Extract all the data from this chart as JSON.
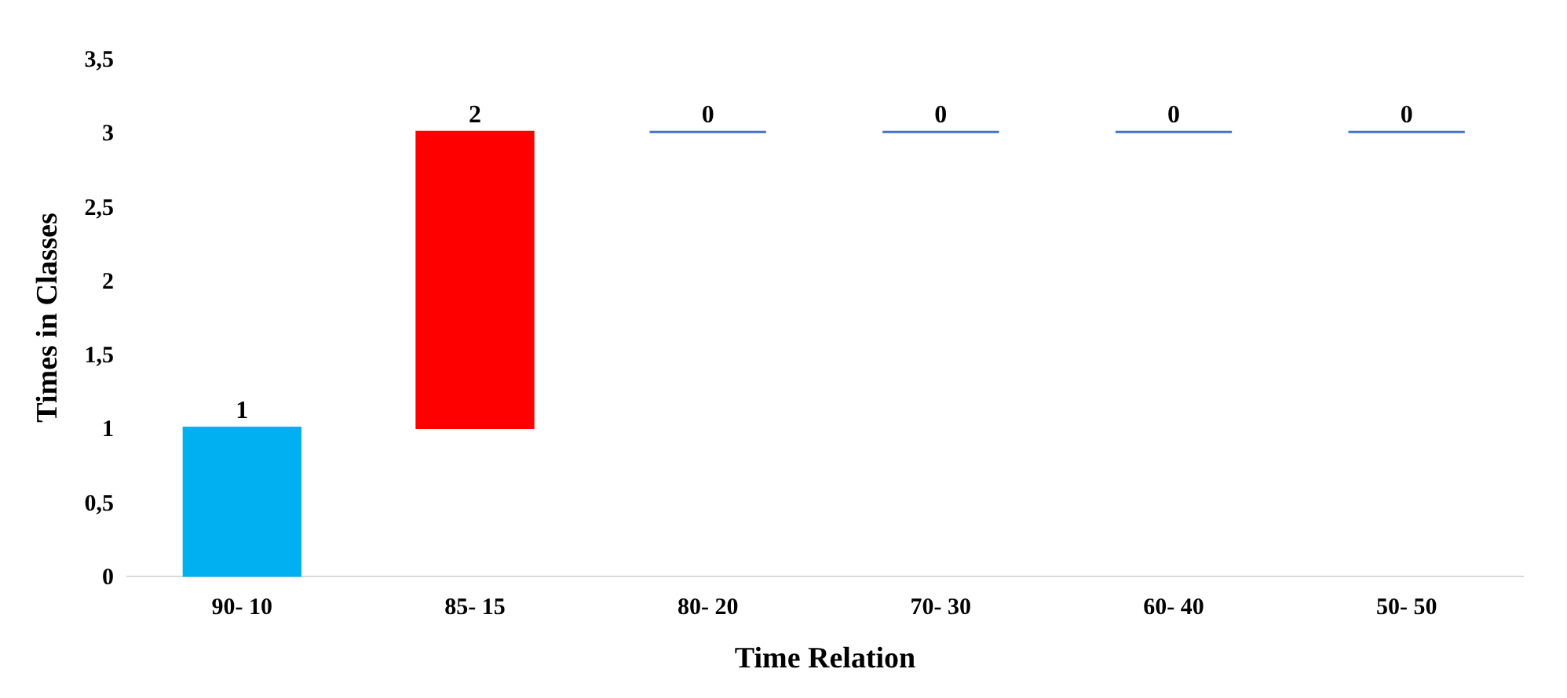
{
  "chart_data": {
    "type": "bar",
    "xlabel": "Time Relation",
    "ylabel": "Times in Classes",
    "categories": [
      "90- 10",
      "85- 15",
      "80- 20",
      "70- 30",
      "60- 40",
      "50- 50"
    ],
    "values": [
      1,
      2,
      0,
      0,
      0,
      0
    ],
    "base": [
      0,
      1,
      3,
      3,
      3,
      3
    ],
    "colors": [
      "#00b0f0",
      "#ff0000",
      "#4472c4",
      "#4472c4",
      "#4472c4",
      "#4472c4"
    ],
    "ylim": [
      0,
      3.5
    ],
    "yticks": [
      0,
      {
        "value": 0.5,
        "label": "0,5"
      },
      1,
      {
        "value": 1.5,
        "label": "1,5"
      },
      2,
      {
        "value": 2.5,
        "label": "2,5"
      },
      3,
      {
        "value": 3.5,
        "label": "3,5"
      }
    ],
    "data_labels": true,
    "grid": false
  }
}
